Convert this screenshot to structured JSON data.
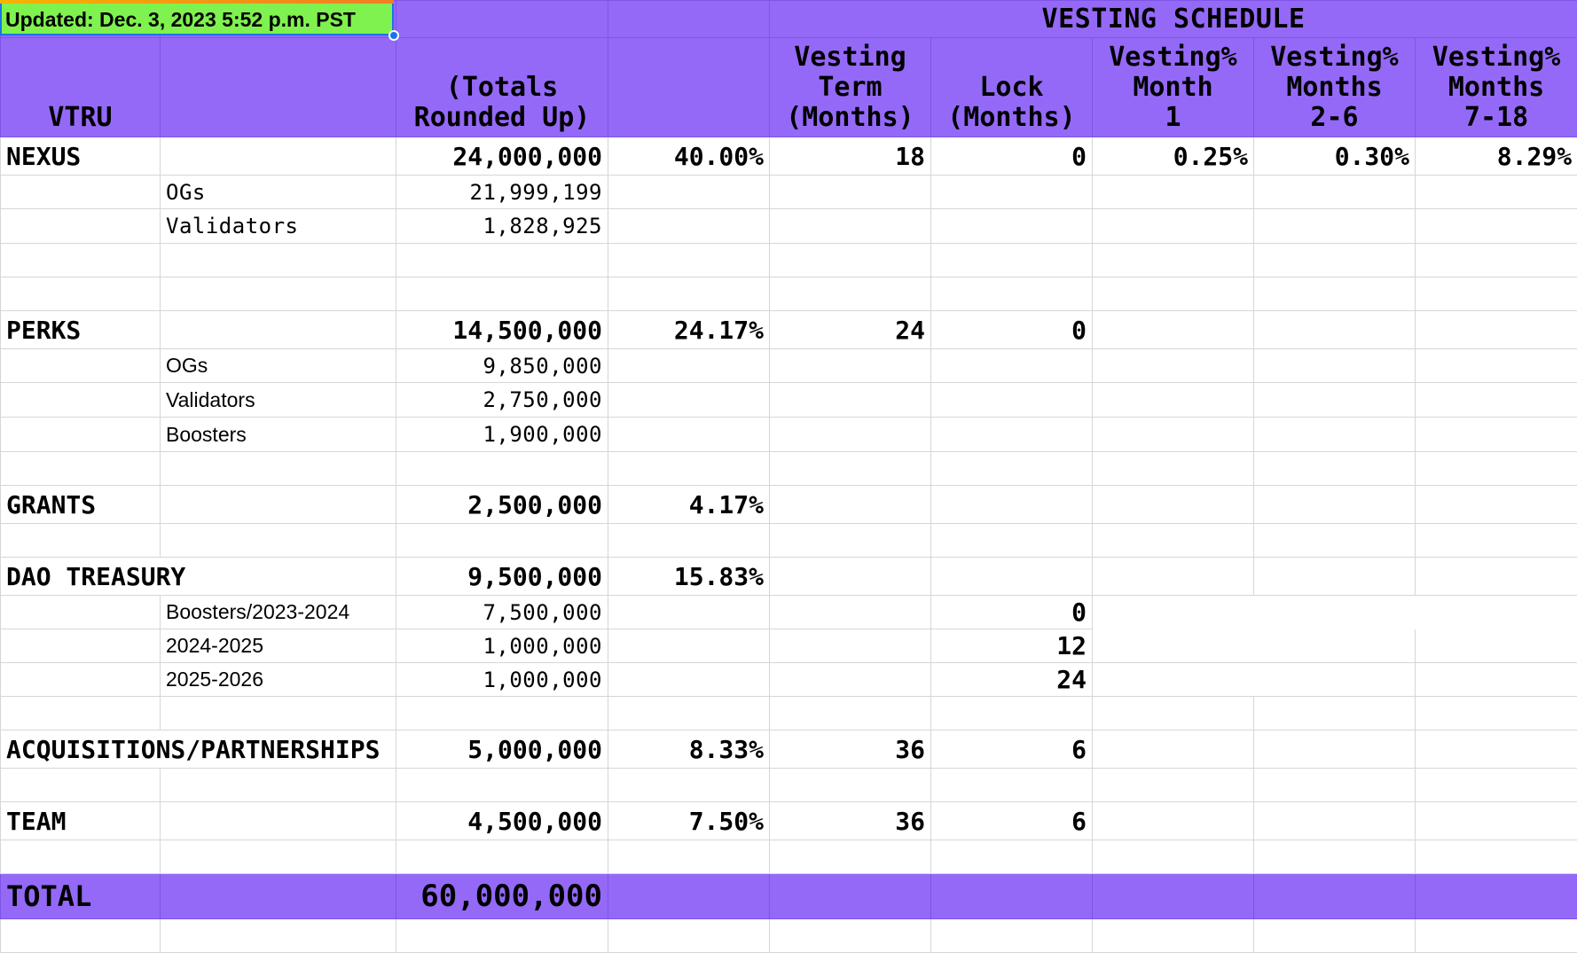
{
  "updated_note": "Updated: Dec. 3, 2023 5:52 p.m. PST",
  "header": {
    "vesting_schedule": "VESTING SCHEDULE",
    "col_vtru": "VTRU",
    "col_totals": "(Totals\nRounded Up)",
    "col_term": "Vesting\nTerm\n(Months)",
    "col_lock": "Lock\n(Months)",
    "col_m1": "Vesting%\nMonth\n1",
    "col_m2_6": "Vesting%\nMonths\n2-6",
    "col_m7_18": "Vesting%\nMonths\n7-18"
  },
  "nexus": {
    "label": "NEXUS",
    "total": "24,000,000",
    "pct": "40.00%",
    "term": "18",
    "lock": "0",
    "m1": "0.25%",
    "m2_6": "0.30%",
    "m7_18": "8.29%",
    "sub": [
      {
        "name": "OGs",
        "value": "21,999,199"
      },
      {
        "name": "Validators",
        "value": "1,828,925"
      }
    ]
  },
  "perks": {
    "label": "PERKS",
    "total": "14,500,000",
    "pct": "24.17%",
    "term": "24",
    "lock": "0",
    "sub": [
      {
        "name": "OGs",
        "value": "9,850,000"
      },
      {
        "name": "Validators",
        "value": "2,750,000"
      },
      {
        "name": "Boosters",
        "value": "1,900,000"
      }
    ]
  },
  "grants": {
    "label": "GRANTS",
    "total": "2,500,000",
    "pct": "4.17%"
  },
  "dao": {
    "label": "DAO TREASURY",
    "total": "9,500,000",
    "pct": "15.83%",
    "sub": [
      {
        "name": "Boosters/2023-2024",
        "value": "7,500,000",
        "lock": "0"
      },
      {
        "name": "2024-2025",
        "value": "1,000,000",
        "lock": "12"
      },
      {
        "name": "2025-2026",
        "value": "1,000,000",
        "lock": "24"
      }
    ]
  },
  "acq": {
    "label": "ACQUISITIONS/PARTNERSHIPS",
    "total": "5,000,000",
    "pct": "8.33%",
    "term": "36",
    "lock": "6"
  },
  "team": {
    "label": "TEAM",
    "total": "4,500,000",
    "pct": "7.50%",
    "term": "36",
    "lock": "6"
  },
  "total": {
    "label": "TOTAL",
    "value": "60,000,000"
  }
}
